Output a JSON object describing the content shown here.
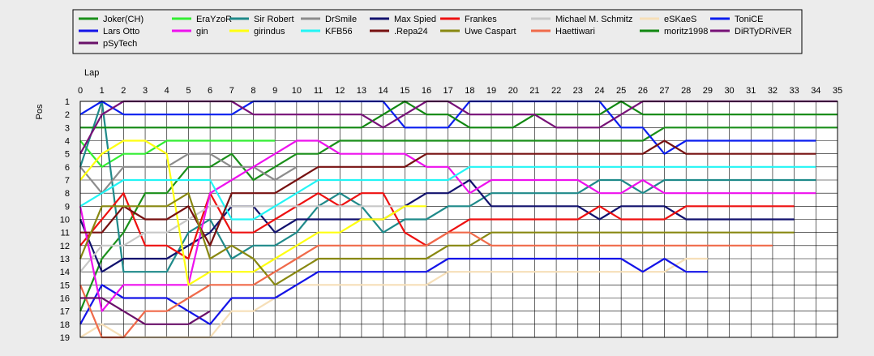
{
  "chart_data": {
    "type": "line",
    "title": "",
    "xlabel": "Lap",
    "ylabel": "Pos",
    "xlim": [
      0,
      35
    ],
    "ylim": [
      1,
      19
    ],
    "y_inverted": true,
    "grid": true,
    "legend_position": "top",
    "x_ticks": [
      "0",
      "1",
      "2",
      "3",
      "4",
      "5",
      "6",
      "7",
      "8",
      "9",
      "10",
      "11",
      "12",
      "13",
      "14",
      "15",
      "16",
      "17",
      "18",
      "19",
      "20",
      "21",
      "22",
      "23",
      "24",
      "25",
      "26",
      "27",
      "28",
      "29",
      "30",
      "31",
      "32",
      "33",
      "34",
      "35"
    ],
    "y_ticks": [
      "1",
      "2",
      "3",
      "4",
      "5",
      "6",
      "7",
      "8",
      "9",
      "10",
      "11",
      "12",
      "13",
      "14",
      "15",
      "16",
      "17",
      "18",
      "19"
    ],
    "series": [
      {
        "name": "Joker(CH)",
        "color": "#1a8f1a",
        "values": [
          17,
          13,
          11,
          8,
          8,
          6,
          6,
          5,
          7,
          6,
          5,
          5,
          4,
          4,
          4,
          4,
          4,
          4,
          4,
          4,
          4,
          4,
          4,
          4,
          4,
          4,
          4,
          3,
          3,
          3,
          3,
          3,
          3,
          3,
          3,
          3
        ]
      },
      {
        "name": "EraYzoR",
        "color": "#33ee33",
        "values": [
          4,
          6,
          5,
          5,
          4,
          4,
          4,
          4,
          4,
          4
        ]
      },
      {
        "name": "Sir Robert",
        "color": "#1f8a8a",
        "values": [
          6,
          1,
          14,
          14,
          14,
          11,
          10,
          13,
          12,
          12,
          11,
          9,
          8,
          9,
          11,
          10,
          10,
          9,
          9,
          8,
          8,
          8,
          8,
          8,
          7,
          7,
          8,
          7,
          7,
          7,
          7,
          7,
          7,
          7,
          7
        ]
      },
      {
        "name": "DrSmile",
        "color": "#8c8c8c",
        "values": [
          6,
          8,
          6,
          6,
          6,
          5,
          5,
          6,
          6,
          7,
          6
        ]
      },
      {
        "name": "Max Spied",
        "color": "#12126e",
        "values": [
          10,
          14,
          13,
          13,
          13,
          12,
          11,
          9,
          9,
          11,
          10,
          10,
          10,
          10,
          10,
          9,
          8,
          8,
          7,
          9,
          9,
          9,
          9,
          9,
          10,
          9,
          9,
          9,
          10,
          10,
          10,
          10,
          10,
          10
        ]
      },
      {
        "name": "Frankes",
        "color": "#ee1111",
        "values": [
          12,
          10,
          8,
          12,
          12,
          13,
          8,
          11,
          11,
          10,
          9,
          8,
          9,
          8,
          8,
          11,
          12,
          11,
          10,
          10,
          10,
          10,
          10,
          10,
          9,
          10,
          10,
          10,
          9,
          9,
          9,
          9,
          9,
          9
        ]
      },
      {
        "name": "Michael M. Schmitz",
        "color": "#c8c8c8",
        "values": [
          14,
          12,
          12,
          11,
          11,
          10,
          9,
          9,
          9,
          9,
          9,
          9,
          9,
          9,
          9,
          9
        ]
      },
      {
        "name": "eSKaeS",
        "color": "#f6dfb8",
        "values": [
          19,
          18,
          19,
          19,
          19,
          19,
          19,
          17,
          17,
          16,
          15,
          15,
          15,
          15,
          15,
          15,
          15,
          14,
          14,
          14,
          14,
          14,
          14,
          14,
          14,
          14,
          14,
          14,
          13,
          13
        ]
      },
      {
        "name": "ToniCE",
        "color": "#0a1eef",
        "values": [
          2,
          1,
          2,
          2,
          2,
          2,
          2,
          2,
          1,
          1,
          1,
          1,
          1,
          1,
          1,
          3,
          3,
          3,
          1,
          1,
          1,
          1,
          1,
          1,
          1,
          3,
          3,
          5,
          4,
          4,
          4,
          4,
          4,
          4,
          4
        ]
      },
      {
        "name": "Lars Otto",
        "color": "#1414e8",
        "values": [
          18,
          15,
          16,
          16,
          16,
          17,
          18,
          16,
          16,
          16,
          15,
          14,
          14,
          14,
          14,
          14,
          14,
          13,
          13,
          13,
          13,
          13,
          13,
          13,
          13,
          13,
          14,
          13,
          14,
          14
        ]
      },
      {
        "name": "gin",
        "color": "#ee11ee",
        "values": [
          9,
          17,
          15,
          15,
          15,
          15,
          8,
          7,
          6,
          5,
          4,
          4,
          5,
          5,
          5,
          5,
          6,
          6,
          8,
          7,
          7,
          7,
          7,
          7,
          8,
          8,
          7,
          8,
          8,
          8,
          8,
          8,
          8,
          8,
          8
        ]
      },
      {
        "name": "girindus",
        "color": "#ffff11",
        "values": [
          7,
          5,
          4,
          4,
          5,
          15,
          14,
          14,
          14,
          13,
          12,
          11,
          11,
          10,
          10,
          9,
          9
        ]
      },
      {
        "name": "KFB56",
        "color": "#22f5f5",
        "values": [
          9,
          8,
          7,
          7,
          7,
          7,
          7,
          10,
          10,
          9,
          8,
          7,
          7,
          7,
          7,
          7,
          7,
          7,
          6,
          6,
          6,
          6,
          6,
          6,
          6,
          6,
          6,
          6,
          6,
          6,
          6,
          6,
          6,
          6,
          6
        ]
      },
      {
        "name": ".Repa24",
        "color": "#771111",
        "values": [
          11,
          11,
          9,
          10,
          10,
          9,
          12,
          8,
          8,
          8,
          7,
          6,
          6,
          6,
          6,
          6,
          5,
          5,
          5,
          5,
          5,
          5,
          5,
          5,
          5,
          5,
          5,
          4,
          5,
          5,
          5,
          5,
          5,
          5,
          5
        ]
      },
      {
        "name": "Uwe Caspart",
        "color": "#888811",
        "values": [
          13,
          9,
          9,
          9,
          9,
          8,
          13,
          12,
          13,
          15,
          14,
          13,
          13,
          13,
          13,
          13,
          13,
          12,
          12,
          11,
          11,
          11,
          11,
          11,
          11,
          11,
          11,
          11,
          11,
          11,
          11,
          11,
          11,
          11
        ]
      },
      {
        "name": "Haettiwari",
        "color": "#f06a4a",
        "values": [
          15,
          19,
          19,
          17,
          17,
          16,
          15,
          15,
          15,
          14,
          13,
          12,
          12,
          12,
          12,
          12,
          12,
          11,
          11,
          12,
          12,
          12,
          12,
          12,
          12,
          12,
          12,
          12,
          12,
          12,
          12,
          12,
          12
        ]
      },
      {
        "name": "moritz1998",
        "color": "#118811",
        "values": [
          3,
          3,
          3,
          3,
          3,
          3,
          3,
          3,
          3,
          3,
          3,
          3,
          3,
          3,
          2,
          1,
          2,
          2,
          3,
          3,
          3,
          2,
          2,
          2,
          2,
          1,
          2,
          2,
          2,
          2,
          2,
          2,
          2,
          2,
          2,
          2
        ]
      },
      {
        "name": "DiRTyDRiVER",
        "color": "#771177",
        "values": [
          5,
          2,
          1,
          1,
          1,
          1,
          1,
          1,
          2,
          2,
          2,
          2,
          2,
          2,
          3,
          2,
          1,
          1,
          2,
          2,
          2,
          2,
          3,
          3,
          3,
          2,
          1,
          1,
          1,
          1,
          1,
          1,
          1,
          1,
          1,
          1
        ]
      },
      {
        "name": "pSyTech",
        "color": "#6a116a",
        "values": [
          16,
          16,
          17,
          18,
          18,
          18,
          17
        ]
      }
    ]
  }
}
